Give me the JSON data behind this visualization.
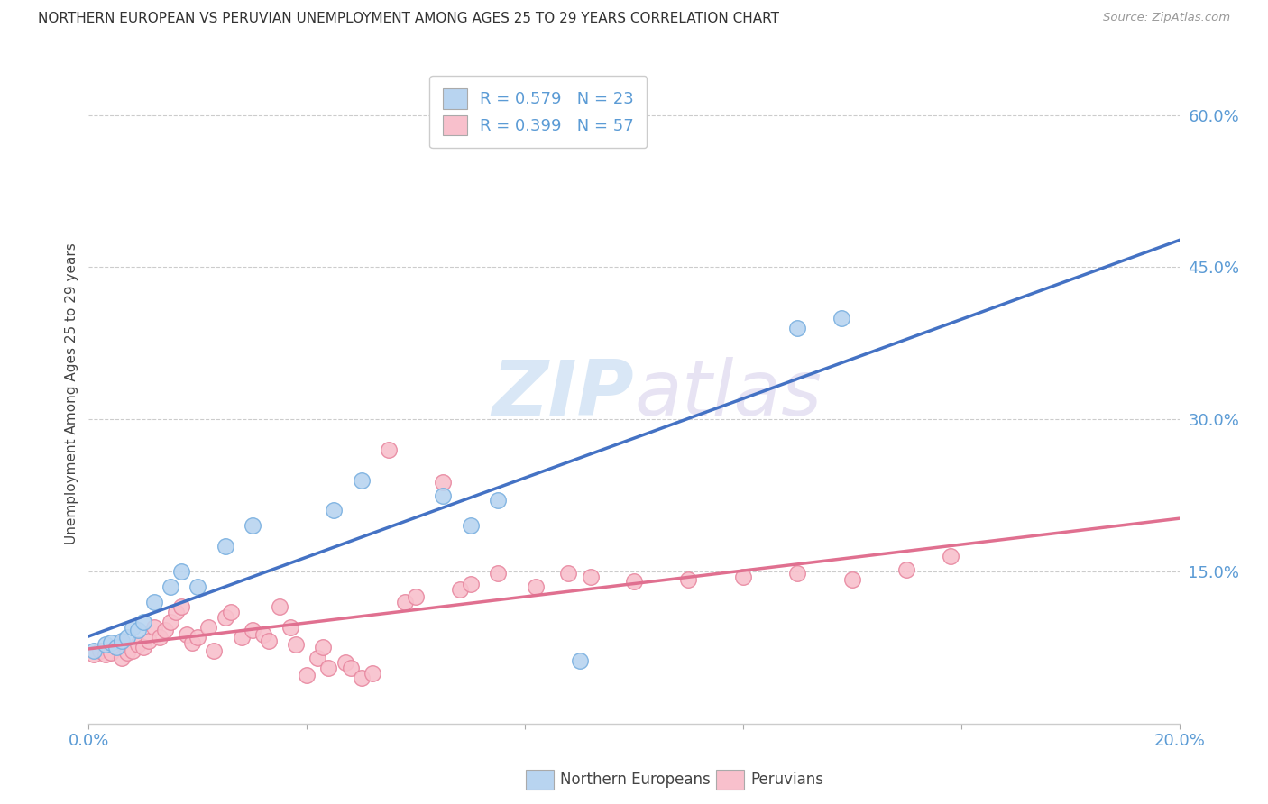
{
  "title": "NORTHERN EUROPEAN VS PERUVIAN UNEMPLOYMENT AMONG AGES 25 TO 29 YEARS CORRELATION CHART",
  "source": "Source: ZipAtlas.com",
  "ylabel": "Unemployment Among Ages 25 to 29 years",
  "xlim": [
    0.0,
    0.2
  ],
  "ylim": [
    0.0,
    0.65
  ],
  "x_ticks": [
    0.0,
    0.04,
    0.08,
    0.12,
    0.16,
    0.2
  ],
  "x_tick_labels": [
    "0.0%",
    "",
    "",
    "",
    "",
    "20.0%"
  ],
  "y_ticks_right": [
    0.15,
    0.3,
    0.45,
    0.6
  ],
  "y_tick_labels_right": [
    "15.0%",
    "30.0%",
    "45.0%",
    "60.0%"
  ],
  "blue_R": "0.579",
  "blue_N": "23",
  "pink_R": "0.399",
  "pink_N": "57",
  "blue_fill_color": "#b8d4f0",
  "blue_edge_color": "#7ab0e0",
  "pink_fill_color": "#f8c0cc",
  "pink_edge_color": "#e888a0",
  "blue_line_color": "#4472c4",
  "pink_line_color": "#e07090",
  "legend_blue_label": "Northern Europeans",
  "legend_pink_label": "Peruvians",
  "watermark_zip": "ZIP",
  "watermark_atlas": "atlas",
  "blue_scatter_x": [
    0.001,
    0.003,
    0.004,
    0.005,
    0.006,
    0.007,
    0.008,
    0.009,
    0.01,
    0.012,
    0.015,
    0.017,
    0.02,
    0.025,
    0.03,
    0.045,
    0.05,
    0.065,
    0.07,
    0.075,
    0.09,
    0.13,
    0.138
  ],
  "blue_scatter_y": [
    0.072,
    0.078,
    0.08,
    0.075,
    0.082,
    0.085,
    0.095,
    0.092,
    0.1,
    0.12,
    0.135,
    0.15,
    0.135,
    0.175,
    0.195,
    0.21,
    0.24,
    0.225,
    0.195,
    0.22,
    0.062,
    0.39,
    0.4
  ],
  "pink_scatter_x": [
    0.001,
    0.002,
    0.003,
    0.004,
    0.005,
    0.006,
    0.006,
    0.007,
    0.008,
    0.009,
    0.01,
    0.011,
    0.012,
    0.013,
    0.014,
    0.015,
    0.016,
    0.017,
    0.018,
    0.019,
    0.02,
    0.022,
    0.023,
    0.025,
    0.026,
    0.028,
    0.03,
    0.032,
    0.033,
    0.035,
    0.037,
    0.038,
    0.04,
    0.042,
    0.043,
    0.044,
    0.047,
    0.048,
    0.05,
    0.052,
    0.055,
    0.058,
    0.06,
    0.065,
    0.068,
    0.07,
    0.075,
    0.082,
    0.088,
    0.092,
    0.1,
    0.11,
    0.12,
    0.13,
    0.14,
    0.15,
    0.158
  ],
  "pink_scatter_y": [
    0.068,
    0.072,
    0.068,
    0.07,
    0.075,
    0.065,
    0.08,
    0.07,
    0.072,
    0.078,
    0.075,
    0.082,
    0.095,
    0.085,
    0.092,
    0.1,
    0.11,
    0.115,
    0.088,
    0.08,
    0.085,
    0.095,
    0.072,
    0.105,
    0.11,
    0.085,
    0.092,
    0.088,
    0.082,
    0.115,
    0.095,
    0.078,
    0.048,
    0.065,
    0.075,
    0.055,
    0.06,
    0.055,
    0.045,
    0.05,
    0.27,
    0.12,
    0.125,
    0.238,
    0.132,
    0.138,
    0.148,
    0.135,
    0.148,
    0.145,
    0.14,
    0.142,
    0.145,
    0.148,
    0.142,
    0.152,
    0.165
  ],
  "background_color": "#ffffff",
  "grid_color": "#cccccc"
}
